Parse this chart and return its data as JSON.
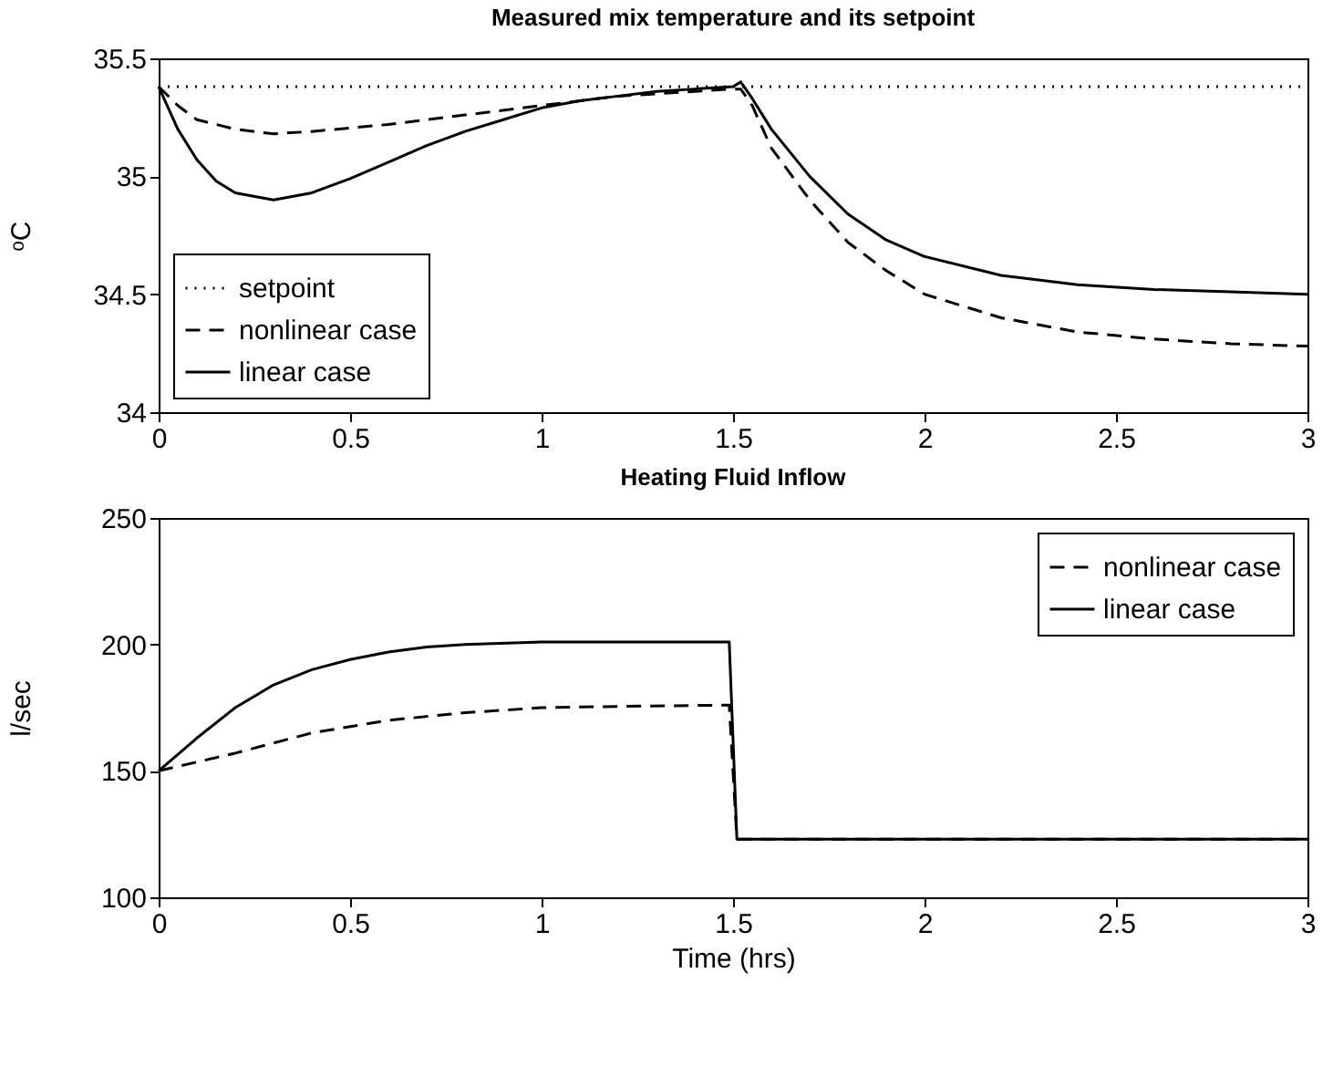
{
  "chart_data": [
    {
      "type": "line",
      "title": "Measured mix temperature and its setpoint",
      "ylabel": "ᵒC",
      "xlim": [
        0,
        3
      ],
      "xticks": [
        0,
        0.5,
        1,
        1.5,
        2,
        2.5,
        3
      ],
      "ylim": [
        34,
        35.5
      ],
      "yticks": [
        34,
        34.5,
        35,
        35.5
      ],
      "grid": false,
      "legend": "bottom left",
      "series": [
        {
          "name": "setpoint",
          "color": "#000000",
          "line_style": "dotted",
          "x": [
            0,
            3
          ],
          "values": [
            35.38,
            35.38
          ]
        },
        {
          "name": "nonlinear case",
          "color": "#000000",
          "line_style": "dashed",
          "x": [
            0,
            0.05,
            0.1,
            0.2,
            0.3,
            0.4,
            0.6,
            0.8,
            1.0,
            1.2,
            1.4,
            1.5,
            1.52,
            1.55,
            1.6,
            1.7,
            1.8,
            1.9,
            2.0,
            2.2,
            2.4,
            2.6,
            2.8,
            3.0
          ],
          "values": [
            35.38,
            35.3,
            35.24,
            35.2,
            35.18,
            35.19,
            35.22,
            35.26,
            35.3,
            35.34,
            35.36,
            35.37,
            35.37,
            35.3,
            35.12,
            34.9,
            34.72,
            34.6,
            34.5,
            34.4,
            34.34,
            34.31,
            34.29,
            34.28
          ]
        },
        {
          "name": "linear case",
          "color": "#000000",
          "line_style": "solid",
          "x": [
            0,
            0.05,
            0.1,
            0.15,
            0.2,
            0.3,
            0.4,
            0.5,
            0.6,
            0.7,
            0.8,
            0.9,
            1.0,
            1.1,
            1.2,
            1.3,
            1.4,
            1.5,
            1.52,
            1.55,
            1.6,
            1.7,
            1.8,
            1.9,
            2.0,
            2.2,
            2.4,
            2.6,
            2.8,
            3.0
          ],
          "values": [
            35.38,
            35.2,
            35.07,
            34.98,
            34.93,
            34.9,
            34.93,
            34.99,
            35.06,
            35.13,
            35.19,
            35.24,
            35.29,
            35.32,
            35.34,
            35.36,
            35.37,
            35.38,
            35.4,
            35.33,
            35.2,
            35.0,
            34.84,
            34.73,
            34.66,
            34.58,
            34.54,
            34.52,
            34.51,
            34.5
          ]
        }
      ]
    },
    {
      "type": "line",
      "title": "Heating Fluid Inflow",
      "xlabel": "Time (hrs)",
      "ylabel": "l/sec",
      "xlim": [
        0,
        3
      ],
      "xticks": [
        0,
        0.5,
        1,
        1.5,
        2,
        2.5,
        3
      ],
      "ylim": [
        100,
        250
      ],
      "yticks": [
        100,
        150,
        200,
        250
      ],
      "grid": false,
      "legend": "top right",
      "series": [
        {
          "name": "nonlinear case",
          "color": "#000000",
          "line_style": "dashed",
          "x": [
            0,
            0.2,
            0.4,
            0.6,
            0.8,
            1.0,
            1.2,
            1.49,
            1.51,
            3
          ],
          "values": [
            150,
            157,
            165,
            170,
            173,
            175,
            175.5,
            176,
            123,
            123
          ]
        },
        {
          "name": "linear case",
          "color": "#000000",
          "line_style": "solid",
          "x": [
            0,
            0.1,
            0.2,
            0.3,
            0.4,
            0.5,
            0.6,
            0.7,
            0.8,
            1.0,
            1.2,
            1.49,
            1.51,
            3
          ],
          "values": [
            150,
            163,
            175,
            184,
            190,
            194,
            197,
            199,
            200,
            201,
            201,
            201,
            123,
            123
          ]
        }
      ]
    }
  ]
}
